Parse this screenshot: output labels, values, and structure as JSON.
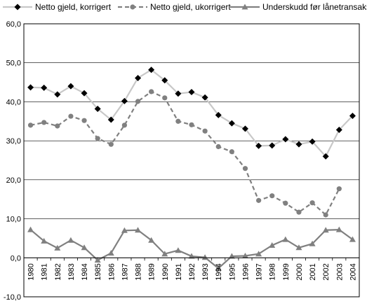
{
  "chart_data": {
    "type": "line",
    "title": "",
    "xlabel": "",
    "ylabel": "",
    "ylim": [
      -10,
      60
    ],
    "ytick_labels": [
      "60,0",
      "50,0",
      "40,0",
      "30,0",
      "20,0",
      "10,0",
      "0,0",
      "-10,0"
    ],
    "ytick_values": [
      60,
      50,
      40,
      30,
      20,
      10,
      0,
      -10
    ],
    "grid": "horizontal",
    "legend_position": "top",
    "categories": [
      "1980",
      "1981",
      "1982",
      "1983",
      "1984",
      "1985",
      "1986",
      "1987",
      "1988",
      "1989",
      "1990",
      "1991",
      "1992",
      "1993",
      "1994",
      "1995",
      "1996",
      "1997",
      "1998",
      "1999",
      "2000",
      "2001",
      "2002",
      "2003",
      "2004"
    ],
    "series": [
      {
        "name": "Netto gjeld, korrigert",
        "marker": "diamond",
        "line_color": "#c8c8c8",
        "marker_color": "#000000",
        "dash": "solid",
        "values": [
          43.7,
          43.6,
          41.9,
          44.0,
          42.2,
          38.2,
          35.4,
          40.2,
          46.1,
          48.2,
          45.5,
          42.1,
          42.5,
          41.1,
          36.6,
          34.5,
          33.1,
          28.7,
          28.8,
          30.4,
          29.1,
          29.8,
          26.0,
          32.8,
          36.4
        ]
      },
      {
        "name": "Netto gjeld, ukorrigert",
        "marker": "circle",
        "line_color": "#808080",
        "marker_color": "#808080",
        "dash": "dashed",
        "values": [
          34.0,
          34.7,
          33.8,
          36.3,
          35.2,
          30.6,
          29.1,
          34.0,
          40.1,
          42.6,
          41.0,
          35.0,
          34.1,
          32.5,
          28.5,
          27.2,
          22.9,
          14.7,
          15.9,
          14.0,
          11.7,
          14.1,
          11.0,
          17.7,
          null
        ]
      },
      {
        "name": "Underskudd før lånetransaksjoner",
        "marker": "triangle",
        "line_color": "#808080",
        "marker_color": "#808080",
        "dash": "solid",
        "values": [
          7.2,
          4.3,
          2.5,
          4.5,
          2.6,
          -0.6,
          1.2,
          7.0,
          7.1,
          4.5,
          1.0,
          1.9,
          0.4,
          0.1,
          -2.7,
          0.4,
          0.5,
          1.0,
          3.2,
          4.7,
          2.6,
          3.6,
          7.1,
          7.2,
          4.7
        ]
      }
    ]
  }
}
